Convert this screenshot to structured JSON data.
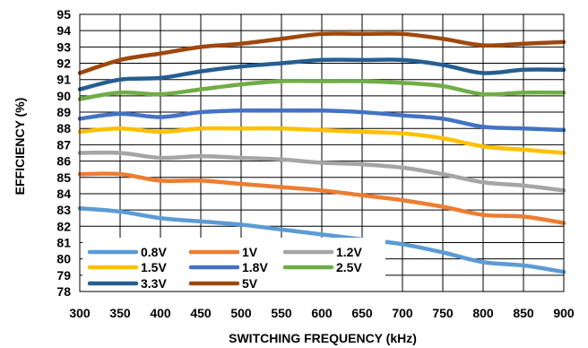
{
  "chart_data": {
    "type": "line",
    "xlabel": "SWITCHING FREQUENCY (kHz)",
    "ylabel": "EFFICIENCY (%)",
    "xlim": [
      300,
      900
    ],
    "ylim": [
      78,
      95
    ],
    "x_ticks": [
      "300",
      "350",
      "400",
      "450",
      "500",
      "550",
      "600",
      "650",
      "700",
      "750",
      "800",
      "850",
      "900"
    ],
    "y_ticks": [
      "78",
      "79",
      "80",
      "81",
      "82",
      "83",
      "84",
      "85",
      "86",
      "87",
      "88",
      "89",
      "90",
      "91",
      "92",
      "93",
      "94",
      "95"
    ],
    "grid": true,
    "legend_position": "bottom-left",
    "x": [
      300,
      350,
      400,
      450,
      500,
      550,
      600,
      650,
      700,
      750,
      800,
      850,
      900
    ],
    "series": [
      {
        "name": "0.8V",
        "color": "#5B9BD5",
        "values": [
          83.1,
          82.9,
          82.5,
          82.3,
          82.1,
          81.8,
          81.5,
          81.2,
          80.9,
          80.4,
          79.8,
          79.6,
          79.2
        ]
      },
      {
        "name": "1V",
        "color": "#ED7D31",
        "values": [
          85.2,
          85.2,
          84.8,
          84.8,
          84.6,
          84.4,
          84.2,
          83.9,
          83.6,
          83.2,
          82.7,
          82.6,
          82.2
        ]
      },
      {
        "name": "1.2V",
        "color": "#A5A5A5",
        "values": [
          86.5,
          86.5,
          86.2,
          86.3,
          86.2,
          86.1,
          85.9,
          85.8,
          85.6,
          85.2,
          84.7,
          84.5,
          84.2
        ]
      },
      {
        "name": "1.5V",
        "color": "#FFC000",
        "values": [
          87.8,
          88.0,
          87.8,
          88.0,
          88.0,
          88.0,
          87.9,
          87.8,
          87.7,
          87.4,
          86.9,
          86.7,
          86.5
        ]
      },
      {
        "name": "1.8V",
        "color": "#4472C4",
        "values": [
          88.6,
          88.9,
          88.7,
          89.0,
          89.1,
          89.1,
          89.1,
          89.0,
          88.8,
          88.6,
          88.1,
          88.0,
          87.9
        ]
      },
      {
        "name": "2.5V",
        "color": "#70AD47",
        "values": [
          89.8,
          90.2,
          90.1,
          90.4,
          90.7,
          90.9,
          90.9,
          90.9,
          90.8,
          90.6,
          90.1,
          90.2,
          90.2
        ]
      },
      {
        "name": "3.3V",
        "color": "#255E91",
        "values": [
          90.4,
          91.0,
          91.1,
          91.5,
          91.8,
          92.0,
          92.2,
          92.2,
          92.2,
          91.9,
          91.4,
          91.6,
          91.6
        ]
      },
      {
        "name": "5V",
        "color": "#9E480E",
        "values": [
          91.4,
          92.2,
          92.6,
          93.0,
          93.2,
          93.5,
          93.8,
          93.8,
          93.8,
          93.5,
          93.1,
          93.2,
          93.3
        ]
      }
    ]
  }
}
